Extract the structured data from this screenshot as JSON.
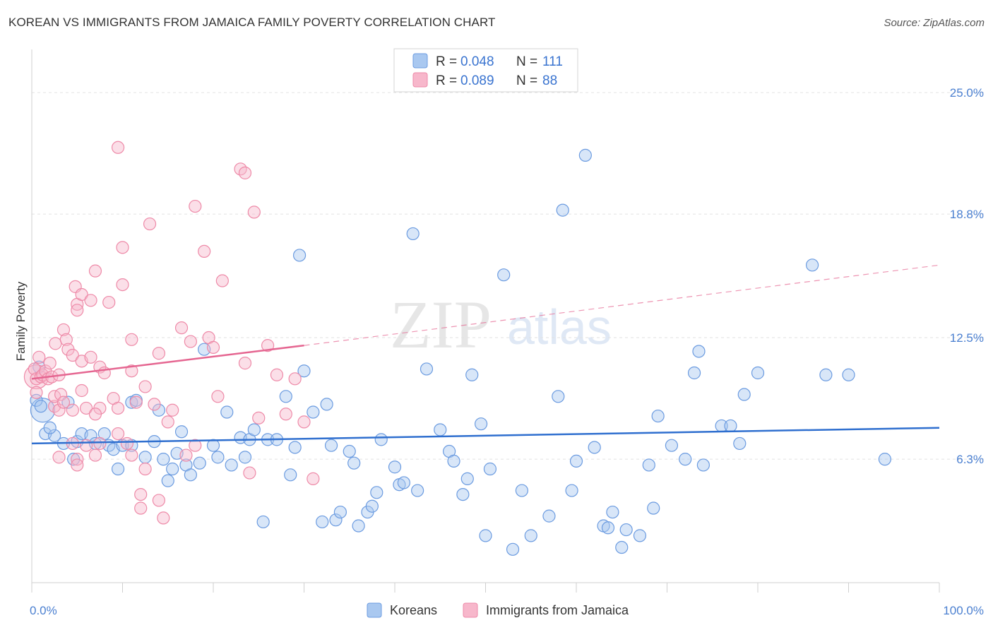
{
  "header": {
    "title": "KOREAN VS IMMIGRANTS FROM JAMAICA FAMILY POVERTY CORRELATION CHART",
    "source": "Source: ZipAtlas.com"
  },
  "watermark": {
    "zip": "ZIP",
    "atlas": "atlas"
  },
  "colors": {
    "blue_fill": "#a9c8f0",
    "blue_stroke": "#6b9be0",
    "blue_line": "#2f6fcf",
    "pink_fill": "#f7b7cb",
    "pink_stroke": "#ee8aa8",
    "pink_line": "#e56691",
    "axis_text": "#4a7fd0"
  },
  "legend": {
    "rows": [
      {
        "r_label": "R = ",
        "r_value": "0.048",
        "n_label": "N = ",
        "n_value": "111"
      },
      {
        "r_label": "R = ",
        "r_value": "0.089",
        "n_label": "N = ",
        "n_value": "88"
      }
    ]
  },
  "chart_data": {
    "type": "scatter",
    "title": "KOREAN VS IMMIGRANTS FROM JAMAICA FAMILY POVERTY CORRELATION CHART",
    "xlabel": "",
    "ylabel": "Family Poverty",
    "xlim": [
      0,
      100
    ],
    "ylim": [
      0,
      27.2
    ],
    "x_tick_labels": [
      "0.0%",
      "100.0%"
    ],
    "y_ticks": [
      6.3,
      12.5,
      18.8,
      25.0
    ],
    "y_tick_labels": [
      "6.3%",
      "12.5%",
      "18.8%",
      "25.0%"
    ],
    "grid": true,
    "legend_position": "top-center",
    "series": [
      {
        "name": "Koreans",
        "r": 0.048,
        "n": 111,
        "trend": {
          "x": [
            0,
            100
          ],
          "y": [
            7.1,
            7.9
          ],
          "dashed_from": null
        },
        "points": [
          [
            0.5,
            9.3
          ],
          [
            1.0,
            9.0
          ],
          [
            0.8,
            11.0
          ],
          [
            1.5,
            7.6
          ],
          [
            2.5,
            7.5
          ],
          [
            3.5,
            7.1
          ],
          [
            2.0,
            7.9
          ],
          [
            5.0,
            7.2
          ],
          [
            4.0,
            9.2
          ],
          [
            4.6,
            6.3
          ],
          [
            5.5,
            7.6
          ],
          [
            6.5,
            7.5
          ],
          [
            7.0,
            7.1
          ],
          [
            8.5,
            7.0
          ],
          [
            8.0,
            7.6
          ],
          [
            9.0,
            6.8
          ],
          [
            10.0,
            7.0
          ],
          [
            9.5,
            5.8
          ],
          [
            11.0,
            9.2
          ],
          [
            11.5,
            9.3
          ],
          [
            11.0,
            7.0
          ],
          [
            12.5,
            6.4
          ],
          [
            13.5,
            7.2
          ],
          [
            14.0,
            8.8
          ],
          [
            14.5,
            6.3
          ],
          [
            15.0,
            5.2
          ],
          [
            15.5,
            5.8
          ],
          [
            16.0,
            6.6
          ],
          [
            16.5,
            7.7
          ],
          [
            17.0,
            6.0
          ],
          [
            17.5,
            5.5
          ],
          [
            18.5,
            6.1
          ],
          [
            19.0,
            11.9
          ],
          [
            20.0,
            7.0
          ],
          [
            20.5,
            6.4
          ],
          [
            21.5,
            8.7
          ],
          [
            22.0,
            6.0
          ],
          [
            23.0,
            7.4
          ],
          [
            23.5,
            6.4
          ],
          [
            24.0,
            7.3
          ],
          [
            24.5,
            7.8
          ],
          [
            25.5,
            3.1
          ],
          [
            26.0,
            7.3
          ],
          [
            27.0,
            7.3
          ],
          [
            28.0,
            9.5
          ],
          [
            28.5,
            5.5
          ],
          [
            29.0,
            6.9
          ],
          [
            29.5,
            16.7
          ],
          [
            30.0,
            10.8
          ],
          [
            31.0,
            8.7
          ],
          [
            32.0,
            3.1
          ],
          [
            32.5,
            9.1
          ],
          [
            33.0,
            7.0
          ],
          [
            33.5,
            3.2
          ],
          [
            34.0,
            3.6
          ],
          [
            35.0,
            6.7
          ],
          [
            35.5,
            6.1
          ],
          [
            36.0,
            2.9
          ],
          [
            37.0,
            3.6
          ],
          [
            37.5,
            3.9
          ],
          [
            38.0,
            4.6
          ],
          [
            38.5,
            7.3
          ],
          [
            40.0,
            5.9
          ],
          [
            40.5,
            5.0
          ],
          [
            41.0,
            5.1
          ],
          [
            42.0,
            17.8
          ],
          [
            42.5,
            4.7
          ],
          [
            43.5,
            10.9
          ],
          [
            45.0,
            7.8
          ],
          [
            46.0,
            6.7
          ],
          [
            46.5,
            6.2
          ],
          [
            47.5,
            4.5
          ],
          [
            48.0,
            5.3
          ],
          [
            48.5,
            10.6
          ],
          [
            49.5,
            8.1
          ],
          [
            50.0,
            2.4
          ],
          [
            50.5,
            5.8
          ],
          [
            52.0,
            15.7
          ],
          [
            53.0,
            1.7
          ],
          [
            54.0,
            4.7
          ],
          [
            55.0,
            2.4
          ],
          [
            57.0,
            3.4
          ],
          [
            58.0,
            9.5
          ],
          [
            58.5,
            19.0
          ],
          [
            59.5,
            4.7
          ],
          [
            60.0,
            6.2
          ],
          [
            61.0,
            21.8
          ],
          [
            62.0,
            6.9
          ],
          [
            63.0,
            2.9
          ],
          [
            63.5,
            2.8
          ],
          [
            64.0,
            3.6
          ],
          [
            65.0,
            1.8
          ],
          [
            65.5,
            2.7
          ],
          [
            67.0,
            2.4
          ],
          [
            68.0,
            6.0
          ],
          [
            68.5,
            3.8
          ],
          [
            69.0,
            8.5
          ],
          [
            70.5,
            7.0
          ],
          [
            72.0,
            6.3
          ],
          [
            73.0,
            10.7
          ],
          [
            74.0,
            6.0
          ],
          [
            76.0,
            8.0
          ],
          [
            77.0,
            8.0
          ],
          [
            78.0,
            7.1
          ],
          [
            78.5,
            9.6
          ],
          [
            80.0,
            10.7
          ],
          [
            86.0,
            16.2
          ],
          [
            87.5,
            10.6
          ],
          [
            90.0,
            10.6
          ],
          [
            94.0,
            6.3
          ],
          [
            73.5,
            11.8
          ]
        ],
        "large_points": [
          [
            1.2,
            8.8
          ]
        ]
      },
      {
        "name": "Immigrants from Jamaica",
        "r": 0.089,
        "n": 88,
        "trend": {
          "x": [
            0,
            30
          ],
          "y": [
            10.4,
            12.1
          ],
          "dashed_to": [
            100,
            16.2
          ]
        },
        "points": [
          [
            0.3,
            10.9
          ],
          [
            0.5,
            10.4
          ],
          [
            0.5,
            9.7
          ],
          [
            0.8,
            11.5
          ],
          [
            1.0,
            10.5
          ],
          [
            1.2,
            10.6
          ],
          [
            1.5,
            10.8
          ],
          [
            2.0,
            11.2
          ],
          [
            1.8,
            10.4
          ],
          [
            2.2,
            10.5
          ],
          [
            2.5,
            9.0
          ],
          [
            2.5,
            9.5
          ],
          [
            2.6,
            12.2
          ],
          [
            3.0,
            10.6
          ],
          [
            3.2,
            9.6
          ],
          [
            3.0,
            8.8
          ],
          [
            3.0,
            6.4
          ],
          [
            3.5,
            12.9
          ],
          [
            3.8,
            12.4
          ],
          [
            3.5,
            9.2
          ],
          [
            4.0,
            11.9
          ],
          [
            4.5,
            11.6
          ],
          [
            4.5,
            8.8
          ],
          [
            4.8,
            15.1
          ],
          [
            4.5,
            7.1
          ],
          [
            5.0,
            14.2
          ],
          [
            5.0,
            13.9
          ],
          [
            5.5,
            14.7
          ],
          [
            5.5,
            11.3
          ],
          [
            5.5,
            9.8
          ],
          [
            5.0,
            6.3
          ],
          [
            5.0,
            6.0
          ],
          [
            6.0,
            8.9
          ],
          [
            6.0,
            7.0
          ],
          [
            6.5,
            14.4
          ],
          [
            6.5,
            11.5
          ],
          [
            7.0,
            15.9
          ],
          [
            7.5,
            11.0
          ],
          [
            7.5,
            8.9
          ],
          [
            7.0,
            8.6
          ],
          [
            7.0,
            6.5
          ],
          [
            7.5,
            7.1
          ],
          [
            8.0,
            10.7
          ],
          [
            8.5,
            14.3
          ],
          [
            9.0,
            9.4
          ],
          [
            9.5,
            22.2
          ],
          [
            9.5,
            8.9
          ],
          [
            9.5,
            7.6
          ],
          [
            10.0,
            17.1
          ],
          [
            10.0,
            15.2
          ],
          [
            10.5,
            7.1
          ],
          [
            11.0,
            12.4
          ],
          [
            11.0,
            10.8
          ],
          [
            11.0,
            6.5
          ],
          [
            11.5,
            9.2
          ],
          [
            12.0,
            3.8
          ],
          [
            12.0,
            4.5
          ],
          [
            12.5,
            10.0
          ],
          [
            12.5,
            5.8
          ],
          [
            13.0,
            18.3
          ],
          [
            13.5,
            9.1
          ],
          [
            14.0,
            11.7
          ],
          [
            14.0,
            4.2
          ],
          [
            15.0,
            8.2
          ],
          [
            15.5,
            8.8
          ],
          [
            16.5,
            13.0
          ],
          [
            17.5,
            12.3
          ],
          [
            14.5,
            3.3
          ],
          [
            17.0,
            6.5
          ],
          [
            18.0,
            7.0
          ],
          [
            18.0,
            19.2
          ],
          [
            19.0,
            16.9
          ],
          [
            19.5,
            12.5
          ],
          [
            20.0,
            12.0
          ],
          [
            20.5,
            9.5
          ],
          [
            21.0,
            15.4
          ],
          [
            23.0,
            21.1
          ],
          [
            23.5,
            20.9
          ],
          [
            23.5,
            11.2
          ],
          [
            24.0,
            5.6
          ],
          [
            24.5,
            18.9
          ],
          [
            25.0,
            8.4
          ],
          [
            26.0,
            12.1
          ],
          [
            27.0,
            10.6
          ],
          [
            28.0,
            8.6
          ],
          [
            29.0,
            10.4
          ],
          [
            30.0,
            8.2
          ],
          [
            31.0,
            5.3
          ]
        ],
        "large_points": [
          [
            0.5,
            10.5
          ]
        ]
      }
    ]
  },
  "bottom_legend": [
    {
      "label": "Koreans"
    },
    {
      "label": "Immigrants from Jamaica"
    }
  ]
}
